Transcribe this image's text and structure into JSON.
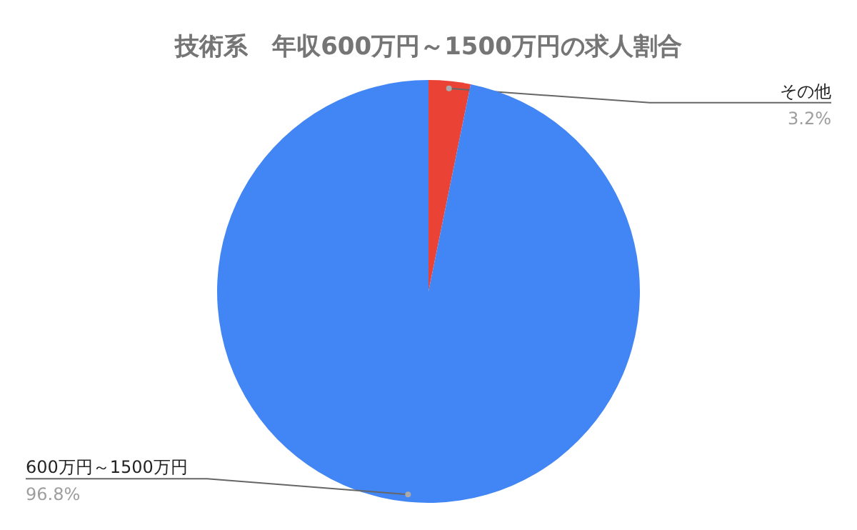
{
  "chart_data": {
    "type": "pie",
    "title": "技術系　年収600万円～1500万円の求人割合",
    "categories": [
      "その他",
      "600万円～1500万円"
    ],
    "values": [
      3.2,
      96.8
    ],
    "colors": [
      "#ea4335",
      "#4285f4"
    ],
    "value_labels": [
      "3.2%",
      "96.8%"
    ]
  }
}
